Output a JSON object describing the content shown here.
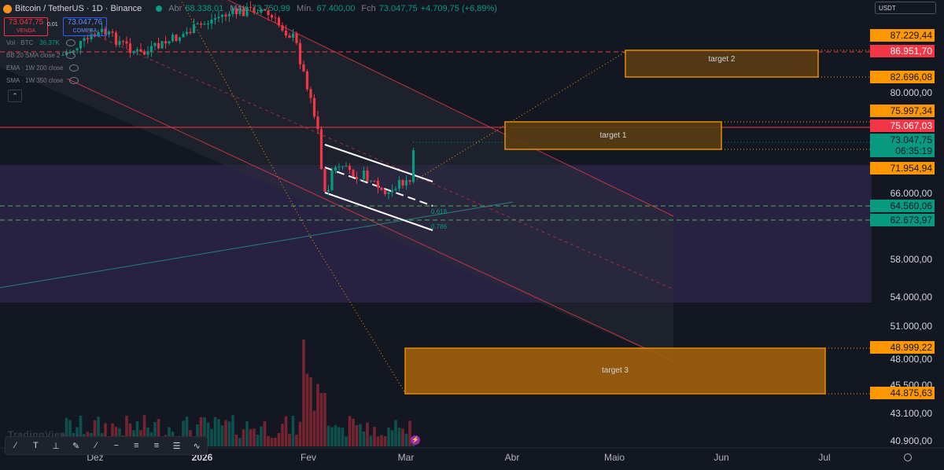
{
  "header": {
    "symbol": "Bitcoin / TetherUS · 1D · Binance",
    "open_label": "Abr",
    "open_value": "68.338,01",
    "high_label": "Máx.",
    "high_value": "73.750,99",
    "low_label": "Mín.",
    "low_value": "67.400,00",
    "close_label": "Fch",
    "close_value": "73.047,75",
    "change": "+4.709,75 (+6,89%)"
  },
  "trade": {
    "sell_price": "73.047,75",
    "sell_label": "VENDA",
    "spread": "0,01",
    "buy_price": "73.047,76",
    "buy_label": "COMPRA"
  },
  "indicators": [
    {
      "name": "Vol · BTC",
      "value": "36,37K"
    },
    {
      "name": "BB 20 SMA close 2",
      "value": ""
    },
    {
      "name": "EMA · 1W 200 close",
      "value": ""
    },
    {
      "name": "SMA · 1W 350 close",
      "value": ""
    }
  ],
  "currency_selector": "USDT",
  "price_axis": {
    "ticks": [
      "80.000,00",
      "66.000,00",
      "58.000,00",
      "54.000,00",
      "51.000,00",
      "48.000,00",
      "45.500,00",
      "43.100,00",
      "40.900,00"
    ],
    "labels": {
      "t2_top": "87.229,44",
      "red_dash": "86.951,70",
      "t2_bot": "82.696,08",
      "t1_top": "75.997,34",
      "red_line": "75.067,03",
      "last": "73.047,75",
      "countdown": "06:35:19",
      "t1_bot": "71.954,94",
      "fib618": "64.560,06",
      "fib786": "62.673,97",
      "t3_top": "48.999,22",
      "t3_bot": "44.875,63"
    }
  },
  "time_axis": {
    "labels": [
      "Dez",
      "2026",
      "Fev",
      "Mar",
      "Abr",
      "Maio",
      "Jun",
      "Jul"
    ]
  },
  "targets": {
    "t1": "target 1",
    "t2": "target 2",
    "t3": "target 3"
  },
  "fib_labels": {
    "a": "0.618",
    "b": "0.786"
  },
  "watermark": "TradingView",
  "colors": {
    "up": "#089981",
    "down": "#f23645",
    "orange": "#ff9800",
    "background": "#131722"
  }
}
